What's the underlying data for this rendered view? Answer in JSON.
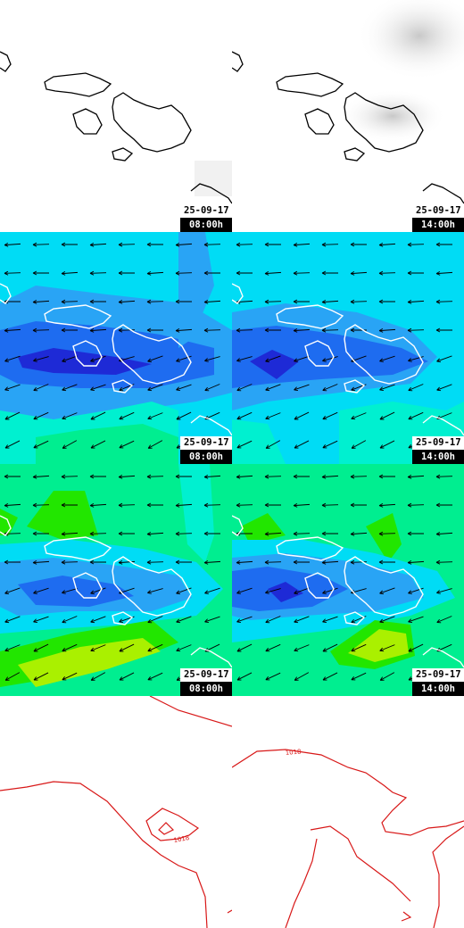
{
  "panels": [
    {
      "date": "25-09-17",
      "time": "08:00h",
      "layer": "clouds"
    },
    {
      "date": "25-09-17",
      "time": "14:00h",
      "layer": "clouds"
    },
    {
      "date": "25-09-17",
      "time": "08:00h",
      "layer": "wind-speed"
    },
    {
      "date": "25-09-17",
      "time": "14:00h",
      "layer": "wind-speed"
    },
    {
      "date": "25-09-17",
      "time": "08:00h",
      "layer": "wind-gust"
    },
    {
      "date": "25-09-17",
      "time": "14:00h",
      "layer": "wind-gust"
    },
    {
      "layer": "pressure"
    },
    {
      "layer": "pressure"
    }
  ],
  "pressure_labels": [
    "1018",
    "1018"
  ],
  "wind_direction": "east-north-east (arrows pointing west)",
  "colors": {
    "calm": "#1e2ad6",
    "light": "#1e6cf0",
    "moderate": "#29a4f5",
    "breeze": "#00dcf5",
    "fresh": "#00f0d0",
    "strong": "#00ee90",
    "gale": "#22e600",
    "severe": "#aaf000",
    "isobar": "#d81818",
    "coast_dark": "#000000",
    "coast_light": "#ffffff"
  }
}
